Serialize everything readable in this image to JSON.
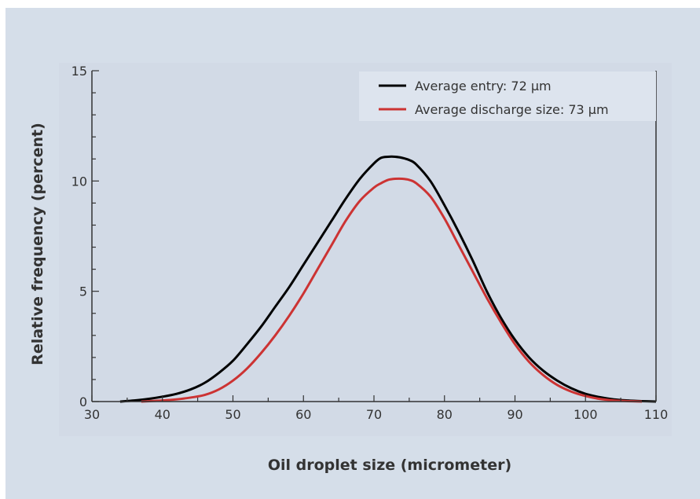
{
  "chart_data": {
    "type": "line",
    "title": "",
    "xlabel": "Oil droplet size (micrometer)",
    "ylabel": "Relative frequency (percent)",
    "xlim": [
      30,
      110
    ],
    "ylim": [
      0,
      15
    ],
    "x_ticks": [
      30,
      40,
      50,
      60,
      70,
      80,
      90,
      100,
      110
    ],
    "y_ticks": [
      0,
      5,
      10,
      15
    ],
    "legend_position": "top-right",
    "grid": false,
    "colors": {
      "background": "#d5dee9",
      "plot_area": "#d2dae6",
      "legend_box": "#dde4ee",
      "axis": "#333333"
    },
    "series": [
      {
        "name": "Average entry: 72 µm",
        "color": "#000000",
        "x": [
          34,
          36,
          38,
          40,
          42,
          44,
          46,
          48,
          50,
          52,
          54,
          56,
          58,
          60,
          62,
          64,
          66,
          68,
          70,
          71,
          72,
          73,
          74,
          75,
          76,
          78,
          80,
          82,
          84,
          86,
          88,
          90,
          92,
          94,
          96,
          98,
          100,
          102,
          104,
          106,
          108,
          110
        ],
        "values": [
          0.0,
          0.05,
          0.12,
          0.22,
          0.35,
          0.55,
          0.85,
          1.3,
          1.85,
          2.6,
          3.4,
          4.3,
          5.2,
          6.2,
          7.2,
          8.2,
          9.2,
          10.1,
          10.8,
          11.05,
          11.1,
          11.1,
          11.05,
          10.95,
          10.75,
          10.0,
          8.9,
          7.7,
          6.4,
          5.0,
          3.8,
          2.8,
          2.0,
          1.4,
          0.95,
          0.6,
          0.35,
          0.2,
          0.1,
          0.05,
          0.02,
          0.0
        ]
      },
      {
        "name": "Average discharge size: 73 µm",
        "color": "#cc3333",
        "x": [
          37,
          40,
          42,
          44,
          46,
          48,
          50,
          52,
          54,
          56,
          58,
          60,
          62,
          64,
          66,
          68,
          70,
          71,
          72,
          73,
          74,
          75,
          76,
          78,
          80,
          82,
          84,
          86,
          88,
          90,
          92,
          94,
          96,
          98,
          100,
          102,
          104,
          106,
          108
        ],
        "values": [
          0.0,
          0.05,
          0.1,
          0.18,
          0.3,
          0.55,
          0.95,
          1.5,
          2.2,
          3.0,
          3.9,
          4.9,
          6.0,
          7.1,
          8.2,
          9.1,
          9.7,
          9.9,
          10.05,
          10.1,
          10.1,
          10.05,
          9.9,
          9.3,
          8.3,
          7.1,
          5.9,
          4.7,
          3.6,
          2.6,
          1.8,
          1.2,
          0.75,
          0.45,
          0.25,
          0.12,
          0.05,
          0.02,
          0.0
        ]
      }
    ]
  }
}
